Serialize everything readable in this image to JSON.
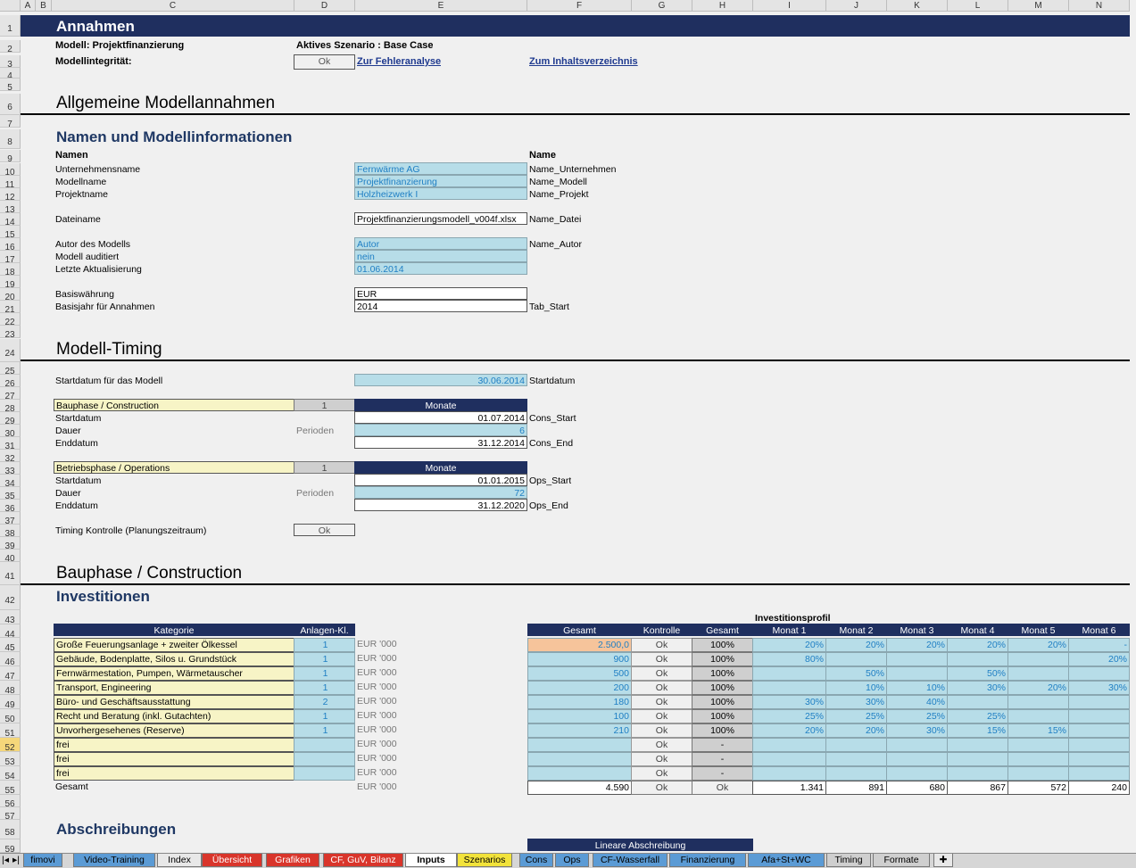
{
  "columns": [
    "A",
    "B",
    "C",
    "D",
    "E",
    "F",
    "G",
    "H",
    "I",
    "J",
    "K",
    "L",
    "M",
    "N"
  ],
  "rows": [
    "1",
    "2",
    "3",
    "4",
    "5",
    "6",
    "7",
    "8",
    "9",
    "10",
    "11",
    "12",
    "13",
    "14",
    "15",
    "16",
    "17",
    "18",
    "19",
    "20",
    "21",
    "22",
    "23",
    "24",
    "25",
    "26",
    "27",
    "28",
    "29",
    "30",
    "31",
    "32",
    "33",
    "34",
    "35",
    "36",
    "37",
    "38",
    "39",
    "40",
    "41",
    "42",
    "43",
    "44",
    "45",
    "46",
    "47",
    "48",
    "49",
    "50",
    "51",
    "52",
    "53",
    "54",
    "55",
    "56",
    "57",
    "58",
    "59"
  ],
  "header": {
    "title": "Annahmen",
    "model_label": "Modell: Projektfinanzierung",
    "scenario_label": "Aktives Szenario : Base Case",
    "integrity_label": "Modellintegrität:",
    "integrity_status": "Ok",
    "error_link": "Zur Fehleranalyse",
    "toc_link": "Zum Inhaltsverzeichnis"
  },
  "general": {
    "title": "Allgemeine Modellannahmen",
    "names_title": "Namen und Modellinformationen",
    "col_names": "Namen",
    "col_name": "Name",
    "company_label": "Unternehmensname",
    "company_value": "Fernwärme AG",
    "company_range": "Name_Unternehmen",
    "modelname_label": "Modellname",
    "modelname_value": "Projektfinanzierung",
    "modelname_range": "Name_Modell",
    "project_label": "Projektname",
    "project_value": "Holzheizwerk I",
    "project_range": "Name_Projekt",
    "file_label": "Dateiname",
    "file_value": "Projektfinanzierungsmodell_v004f.xlsx",
    "file_range": "Name_Datei",
    "author_label": "Autor des Modells",
    "author_value": "Autor",
    "author_range": "Name_Autor",
    "audited_label": "Modell auditiert",
    "audited_value": "nein",
    "updated_label": "Letzte Aktualisierung",
    "updated_value": "01.06.2014",
    "currency_label": "Basiswährung",
    "currency_value": "EUR",
    "baseyear_label": "Basisjahr für Annahmen",
    "baseyear_value": "2014",
    "baseyear_range": "Tab_Start"
  },
  "timing": {
    "title": "Modell-Timing",
    "start_label": "Startdatum für das Modell",
    "start_value": "30.06.2014",
    "start_range": "Startdatum",
    "cons_label": "Bauphase / Construction",
    "cons_flag": "1",
    "cons_unit": "Monate",
    "cons_start_label": "Startdatum",
    "cons_start_value": "01.07.2014",
    "cons_start_range": "Cons_Start",
    "cons_dur_label": "Dauer",
    "cons_dur_unit": "Perioden",
    "cons_dur_value": "6",
    "cons_end_label": "Enddatum",
    "cons_end_value": "31.12.2014",
    "cons_end_range": "Cons_End",
    "ops_label": "Betriebsphase / Operations",
    "ops_flag": "1",
    "ops_unit": "Monate",
    "ops_start_label": "Startdatum",
    "ops_start_value": "01.01.2015",
    "ops_start_range": "Ops_Start",
    "ops_dur_label": "Dauer",
    "ops_dur_unit": "Perioden",
    "ops_dur_value": "72",
    "ops_end_label": "Enddatum",
    "ops_end_value": "31.12.2020",
    "ops_end_range": "Ops_End",
    "check_label": "Timing Kontrolle (Planungszeitraum)",
    "check_value": "Ok"
  },
  "construction": {
    "title": "Bauphase / Construction",
    "invest_title": "Investitionen",
    "profile_title": "Investitionsprofil",
    "head_kategorie": "Kategorie",
    "head_anlagen": "Anlagen-Kl.",
    "head_gesamt": "Gesamt",
    "head_kontrolle": "Kontrolle",
    "head_gesamt2": "Gesamt",
    "months": [
      "Monat 1",
      "Monat 2",
      "Monat 3",
      "Monat 4",
      "Monat 5",
      "Monat 6"
    ],
    "rows": [
      {
        "name": "Große Feuerungsanlage + zweiter Ölkessel",
        "cls": "1",
        "unit": "EUR '000",
        "total": "2.500,0",
        "check": "Ok",
        "pct": "100%",
        "m": [
          "20%",
          "20%",
          "20%",
          "20%",
          "20%",
          "-"
        ]
      },
      {
        "name": "Gebäude, Bodenplatte, Silos u. Grundstück",
        "cls": "1",
        "unit": "EUR '000",
        "total": "900",
        "check": "Ok",
        "pct": "100%",
        "m": [
          "80%",
          "",
          "",
          "",
          "",
          "20%"
        ]
      },
      {
        "name": "Fernwärmestation, Pumpen, Wärmetauscher",
        "cls": "1",
        "unit": "EUR '000",
        "total": "500",
        "check": "Ok",
        "pct": "100%",
        "m": [
          "",
          "50%",
          "",
          "50%",
          "",
          ""
        ]
      },
      {
        "name": "Transport, Engineering",
        "cls": "1",
        "unit": "EUR '000",
        "total": "200",
        "check": "Ok",
        "pct": "100%",
        "m": [
          "",
          "10%",
          "10%",
          "30%",
          "20%",
          "30%"
        ]
      },
      {
        "name": "Büro- und Geschäftsausstattung",
        "cls": "2",
        "unit": "EUR '000",
        "total": "180",
        "check": "Ok",
        "pct": "100%",
        "m": [
          "30%",
          "30%",
          "40%",
          "",
          "",
          ""
        ]
      },
      {
        "name": "Recht und Beratung (inkl. Gutachten)",
        "cls": "1",
        "unit": "EUR '000",
        "total": "100",
        "check": "Ok",
        "pct": "100%",
        "m": [
          "25%",
          "25%",
          "25%",
          "25%",
          "",
          ""
        ]
      },
      {
        "name": "Unvorhergesehenes (Reserve)",
        "cls": "1",
        "unit": "EUR '000",
        "total": "210",
        "check": "Ok",
        "pct": "100%",
        "m": [
          "20%",
          "20%",
          "30%",
          "15%",
          "15%",
          ""
        ]
      },
      {
        "name": "frei",
        "cls": "",
        "unit": "EUR '000",
        "total": "",
        "check": "Ok",
        "pct": "-",
        "m": [
          "",
          "",
          "",
          "",
          "",
          ""
        ]
      },
      {
        "name": "frei",
        "cls": "",
        "unit": "EUR '000",
        "total": "",
        "check": "Ok",
        "pct": "-",
        "m": [
          "",
          "",
          "",
          "",
          "",
          ""
        ]
      },
      {
        "name": "frei",
        "cls": "",
        "unit": "EUR '000",
        "total": "",
        "check": "Ok",
        "pct": "-",
        "m": [
          "",
          "",
          "",
          "",
          "",
          ""
        ]
      }
    ],
    "sum": {
      "label": "Gesamt",
      "unit": "EUR '000",
      "total": "4.590",
      "check": "Ok",
      "pct": "Ok",
      "m": [
        "1.341",
        "891",
        "680",
        "867",
        "572",
        "240"
      ]
    }
  },
  "depreciation": {
    "title": "Abschreibungen",
    "linear_label": "Lineare Abschreibung"
  },
  "sheet_tabs": [
    "fimovi",
    "Video-Training",
    "Index",
    "Übersicht",
    "Grafiken",
    "CF, GuV, Bilanz",
    "Inputs",
    "Szenarios",
    "Cons",
    "Ops",
    "CF-Wasserfall",
    "Finanzierung",
    "Afa+St+WC",
    "Timing",
    "Formate"
  ],
  "active_tab": "Inputs",
  "colors": {
    "navy": "#1f2f5f",
    "teal": "#b7dde8",
    "yellow": "#f7f4c6",
    "link": "#1f3a8f"
  }
}
